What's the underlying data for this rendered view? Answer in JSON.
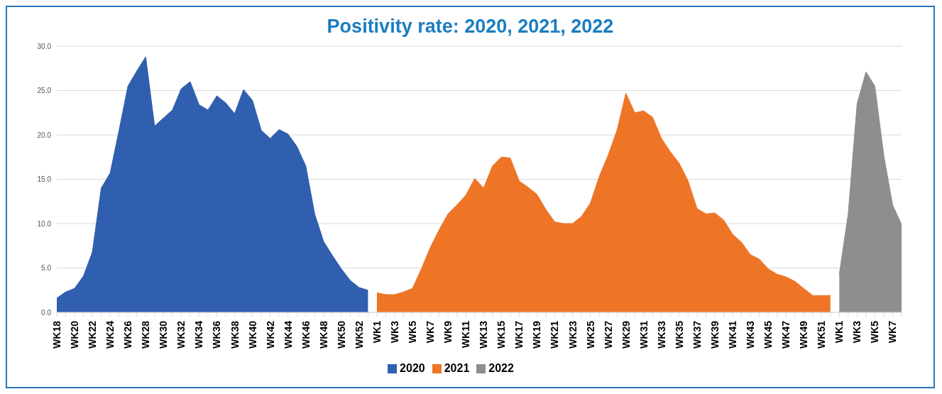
{
  "chart_data": {
    "type": "area",
    "title": "Positivity rate: 2020, 2021, 2022",
    "categories": [
      "WK18",
      null,
      "WK20",
      null,
      "WK22",
      null,
      "WK24",
      null,
      "WK26",
      null,
      "WK28",
      null,
      "WK30",
      null,
      "WK32",
      null,
      "WK34",
      null,
      "WK36",
      null,
      "WK38",
      null,
      "WK40",
      null,
      "WK42",
      null,
      "WK44",
      null,
      "WK46",
      null,
      "WK48",
      null,
      "WK50",
      null,
      "WK52",
      null,
      "WK1",
      null,
      "WK3",
      null,
      "WK5",
      null,
      "WK7",
      null,
      "WK9",
      null,
      "WK11",
      null,
      "WK13",
      null,
      "WK15",
      null,
      "WK17",
      null,
      "WK19",
      null,
      "WK21",
      null,
      "WK23",
      null,
      "WK25",
      null,
      "WK27",
      null,
      "WK29",
      null,
      "WK31",
      null,
      "WK33",
      null,
      "WK35",
      null,
      "WK37",
      null,
      "WK39",
      null,
      "WK41",
      null,
      "WK43",
      null,
      "WK45",
      null,
      "WK47",
      null,
      "WK49",
      null,
      "WK51",
      null,
      "WK1",
      null,
      "WK3",
      null,
      "WK5",
      null,
      "WK7",
      null
    ],
    "series": [
      {
        "name": "2020",
        "color": "#2f5fae",
        "values": [
          1.6,
          2.3,
          2.7,
          4.1,
          6.8,
          14.0,
          15.7,
          20.5,
          25.5,
          27.2,
          28.8,
          21.0,
          21.9,
          22.8,
          25.2,
          26.0,
          23.4,
          22.8,
          24.4,
          23.6,
          22.4,
          25.1,
          23.9,
          20.5,
          19.6,
          20.6,
          20.1,
          18.7,
          16.5,
          11.1,
          8.0,
          6.4,
          4.9,
          3.6,
          2.8,
          2.5,
          null,
          null,
          null,
          null,
          null,
          null,
          null,
          null,
          null,
          null,
          null,
          null,
          null,
          null,
          null,
          null,
          null,
          null,
          null,
          null,
          null,
          null,
          null,
          null,
          null,
          null,
          null,
          null,
          null,
          null,
          null,
          null,
          null,
          null,
          null,
          null,
          null,
          null,
          null,
          null,
          null,
          null,
          null,
          null,
          null,
          null,
          null,
          null,
          null,
          null,
          null,
          null,
          null,
          null,
          null,
          null,
          null,
          null,
          null,
          null
        ]
      },
      {
        "name": "2021",
        "color": "#ee7526",
        "values": [
          null,
          null,
          null,
          null,
          null,
          null,
          null,
          null,
          null,
          null,
          null,
          null,
          null,
          null,
          null,
          null,
          null,
          null,
          null,
          null,
          null,
          null,
          null,
          null,
          null,
          null,
          null,
          null,
          null,
          null,
          null,
          null,
          null,
          null,
          null,
          null,
          2.2,
          2.0,
          2.0,
          2.3,
          2.7,
          4.9,
          7.3,
          9.3,
          11.1,
          12.1,
          13.2,
          15.1,
          14.0,
          16.5,
          17.5,
          17.4,
          14.8,
          14.1,
          13.3,
          11.6,
          10.2,
          10.0,
          10.0,
          10.8,
          12.3,
          15.3,
          17.7,
          20.5,
          24.7,
          22.5,
          22.7,
          22.0,
          19.6,
          18.1,
          16.8,
          14.8,
          11.7,
          11.1,
          11.2,
          10.4,
          8.8,
          7.9,
          6.5,
          6.0,
          4.9,
          4.3,
          4.0,
          3.5,
          2.7,
          1.9,
          1.9,
          1.9,
          null,
          null,
          null,
          null,
          null,
          null,
          null,
          null
        ]
      },
      {
        "name": "2022",
        "color": "#8e8e8e",
        "values": [
          null,
          null,
          null,
          null,
          null,
          null,
          null,
          null,
          null,
          null,
          null,
          null,
          null,
          null,
          null,
          null,
          null,
          null,
          null,
          null,
          null,
          null,
          null,
          null,
          null,
          null,
          null,
          null,
          null,
          null,
          null,
          null,
          null,
          null,
          null,
          null,
          null,
          null,
          null,
          null,
          null,
          null,
          null,
          null,
          null,
          null,
          null,
          null,
          null,
          null,
          null,
          null,
          null,
          null,
          null,
          null,
          null,
          null,
          null,
          null,
          null,
          null,
          null,
          null,
          null,
          null,
          null,
          null,
          null,
          null,
          null,
          null,
          null,
          null,
          null,
          null,
          null,
          null,
          null,
          null,
          null,
          null,
          null,
          null,
          null,
          null,
          null,
          null,
          4.3,
          11.1,
          23.5,
          27.1,
          25.5,
          17.7,
          12.1,
          9.9
        ]
      }
    ],
    "ylim": [
      0,
      30
    ],
    "yticks": [
      {
        "value": 0,
        "label": "0.0"
      },
      {
        "value": 5,
        "label": "5.0"
      },
      {
        "value": 10,
        "label": "10.0"
      },
      {
        "value": 15,
        "label": "15.0"
      },
      {
        "value": 20,
        "label": "20.0"
      },
      {
        "value": 25,
        "label": "25.0"
      },
      {
        "value": 30,
        "label": "30.0"
      }
    ],
    "grid": "y",
    "legend": "bottom"
  }
}
